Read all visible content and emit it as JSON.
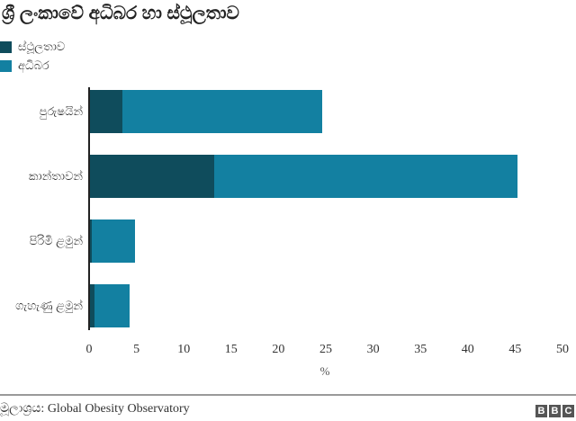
{
  "header": {
    "title": "ශ්‍රී ලංකාවේ අධිබර හා ස්ථූලතාව"
  },
  "legend": [
    {
      "label": "ස්ථූලතාව",
      "color": "#0f4c5c"
    },
    {
      "label": "අධිබර",
      "color": "#1380a1"
    }
  ],
  "categories": [
    {
      "label": "පුරුෂයින්"
    },
    {
      "label": "කාන්තාවන්"
    },
    {
      "label": "පිරිමි ළමුන්"
    },
    {
      "label": "ගැහැණු ළමුන්"
    }
  ],
  "x_axis": {
    "ticks": [
      "0",
      "5",
      "10",
      "15",
      "20",
      "25",
      "30",
      "35",
      "40",
      "45",
      "50"
    ],
    "label": "%"
  },
  "footer": {
    "source": "මූලාශ්‍රය: Global Obesity Observatory",
    "logo": [
      "B",
      "B",
      "C"
    ]
  },
  "chart_data": {
    "type": "bar",
    "orientation": "horizontal",
    "stacked": true,
    "title": "ශ්‍රී ලංකාවේ අධිබර හා ස්ථූලතාව",
    "categories": [
      "පුරුෂයින්",
      "කාන්තාවන්",
      "පිරිමි ළමුන්",
      "ගැහැණු ළමුන්"
    ],
    "series": [
      {
        "name": "ස්ථූලතාව",
        "color": "#0f4c5c",
        "values": [
          3.4,
          13.1,
          0.2,
          0.5
        ]
      },
      {
        "name": "අධිබර",
        "color": "#1380a1",
        "values": [
          21.1,
          32.1,
          4.6,
          3.7
        ]
      }
    ],
    "totals": [
      24.5,
      45.2,
      4.8,
      4.2
    ],
    "xlabel": "%",
    "ylabel": "",
    "xlim": [
      0,
      50
    ],
    "xticks": [
      0,
      5,
      10,
      15,
      20,
      25,
      30,
      35,
      40,
      45,
      50
    ],
    "grid": false,
    "legend_position": "top-left",
    "source": "Global Obesity Observatory"
  }
}
